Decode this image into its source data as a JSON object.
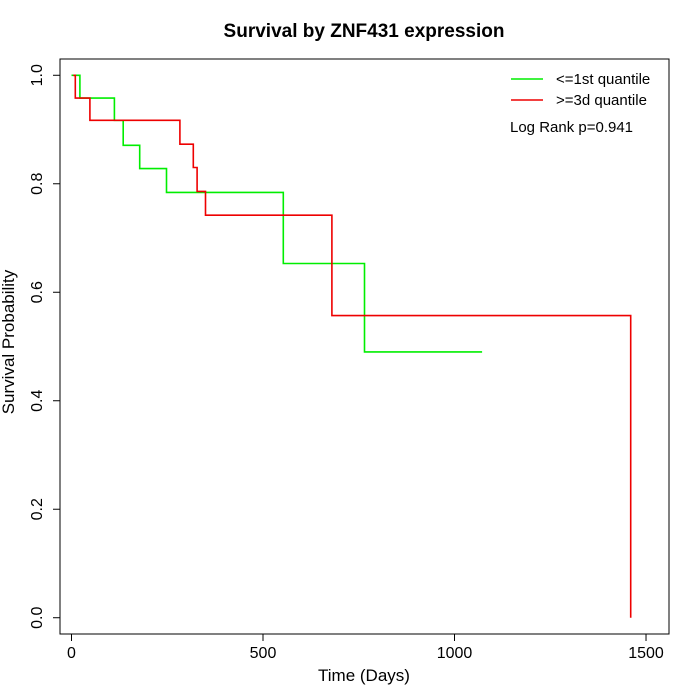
{
  "chart_data": {
    "type": "line",
    "step": true,
    "title": "Survival by ZNF431 expression",
    "xlabel": "Time (Days)",
    "ylabel": "Survival Probability",
    "xlim": [
      -30,
      1560
    ],
    "ylim": [
      -0.03,
      1.03
    ],
    "x_ticks": [
      0,
      500,
      1000,
      1500
    ],
    "y_ticks": [
      0.0,
      0.2,
      0.4,
      0.6,
      0.8,
      1.0
    ],
    "x_tick_labels": [
      "0",
      "500",
      "1000",
      "1500"
    ],
    "y_tick_labels": [
      "0.0",
      "0.2",
      "0.4",
      "0.6",
      "0.8",
      "1.0"
    ],
    "legend_position": "top-right",
    "annotation": "Log Rank p=0.941",
    "series": [
      {
        "name": "<=1st quantile",
        "color": "#00ee00",
        "points": [
          [
            0,
            1.0
          ],
          [
            22,
            1.0
          ],
          [
            22,
            0.958
          ],
          [
            112,
            0.958
          ],
          [
            112,
            0.917
          ],
          [
            135,
            0.917
          ],
          [
            135,
            0.871
          ],
          [
            178,
            0.871
          ],
          [
            178,
            0.828
          ],
          [
            248,
            0.828
          ],
          [
            248,
            0.784
          ],
          [
            553,
            0.784
          ],
          [
            553,
            0.653
          ],
          [
            765,
            0.653
          ],
          [
            765,
            0.49
          ],
          [
            1072,
            0.49
          ]
        ]
      },
      {
        "name": ">=3d quantile",
        "color": "#ee0000",
        "points": [
          [
            5,
            1.0
          ],
          [
            10,
            1.0
          ],
          [
            10,
            0.958
          ],
          [
            48,
            0.958
          ],
          [
            48,
            0.917
          ],
          [
            283,
            0.917
          ],
          [
            283,
            0.873
          ],
          [
            318,
            0.873
          ],
          [
            318,
            0.83
          ],
          [
            328,
            0.83
          ],
          [
            328,
            0.786
          ],
          [
            350,
            0.786
          ],
          [
            350,
            0.742
          ],
          [
            680,
            0.742
          ],
          [
            680,
            0.557
          ],
          [
            1460,
            0.557
          ],
          [
            1460,
            0.0
          ]
        ]
      }
    ]
  }
}
